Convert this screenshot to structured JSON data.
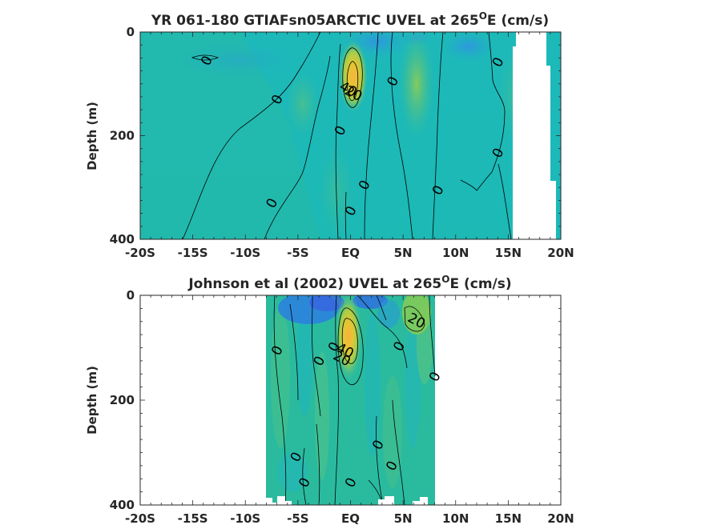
{
  "chart_data": [
    {
      "type": "contour",
      "title": "YR 061-180 GTIAFsn05ARCTIC UVEL at 265",
      "title_sup": "O",
      "title_tail": "E (cm/s)",
      "ylabel": "Depth (m)",
      "x_ticks": [
        "-20S",
        "-15S",
        "-10S",
        "-5S",
        "EQ",
        "5N",
        "10N",
        "15N",
        "20N"
      ],
      "y_ticks": [
        "0",
        "200",
        "400"
      ],
      "xlim": [
        -20,
        20
      ],
      "ylim": [
        0,
        400
      ],
      "core": {
        "lat": 0.2,
        "depth": 90,
        "max": 40
      },
      "contour_labels": [
        {
          "text": "0",
          "lat": -13.7,
          "depth": 55
        },
        {
          "text": "0",
          "lat": -7.0,
          "depth": 130
        },
        {
          "text": "0",
          "lat": -7.5,
          "depth": 330
        },
        {
          "text": "40",
          "lat": -0.2,
          "depth": 110
        },
        {
          "text": "20",
          "lat": 0.3,
          "depth": 118
        },
        {
          "text": "0",
          "lat": -1.0,
          "depth": 190
        },
        {
          "text": "0",
          "lat": 1.3,
          "depth": 295
        },
        {
          "text": "0",
          "lat": 0.0,
          "depth": 345
        },
        {
          "text": "0",
          "lat": 4.0,
          "depth": 95
        },
        {
          "text": "0",
          "lat": 8.3,
          "depth": 305
        },
        {
          "text": "0",
          "lat": 14.0,
          "depth": 58
        },
        {
          "text": "0",
          "lat": 14.0,
          "depth": 233
        }
      ]
    },
    {
      "type": "contour",
      "title": "Johnson et al (2002) UVEL at 265",
      "title_sup": "O",
      "title_tail": "E (cm/s)",
      "ylabel": "Depth (m)",
      "x_ticks": [
        "-20S",
        "-15S",
        "-10S",
        "-5S",
        "EQ",
        "5N",
        "10N",
        "15N",
        "20N"
      ],
      "y_ticks": [
        "0",
        "200",
        "400"
      ],
      "xlim": [
        -20,
        20
      ],
      "ylim": [
        0,
        400
      ],
      "core": {
        "lat": 0.0,
        "depth": 70,
        "max": 40
      },
      "contour_labels": [
        {
          "text": "0",
          "lat": -7.0,
          "depth": 105
        },
        {
          "text": "0",
          "lat": -3.0,
          "depth": 125
        },
        {
          "text": "0",
          "lat": -1.6,
          "depth": 98
        },
        {
          "text": "40",
          "lat": -0.5,
          "depth": 105
        },
        {
          "text": "20",
          "lat": -0.8,
          "depth": 120
        },
        {
          "text": "0",
          "lat": 4.6,
          "depth": 97
        },
        {
          "text": "20",
          "lat": 6.3,
          "depth": 48
        },
        {
          "text": "0",
          "lat": 8.0,
          "depth": 155
        },
        {
          "text": "0",
          "lat": 2.6,
          "depth": 285
        },
        {
          "text": "0",
          "lat": 3.9,
          "depth": 325
        },
        {
          "text": "0",
          "lat": -5.2,
          "depth": 308
        },
        {
          "text": "0",
          "lat": -4.4,
          "depth": 357
        },
        {
          "text": "0",
          "lat": 0.0,
          "depth": 357
        }
      ]
    }
  ]
}
